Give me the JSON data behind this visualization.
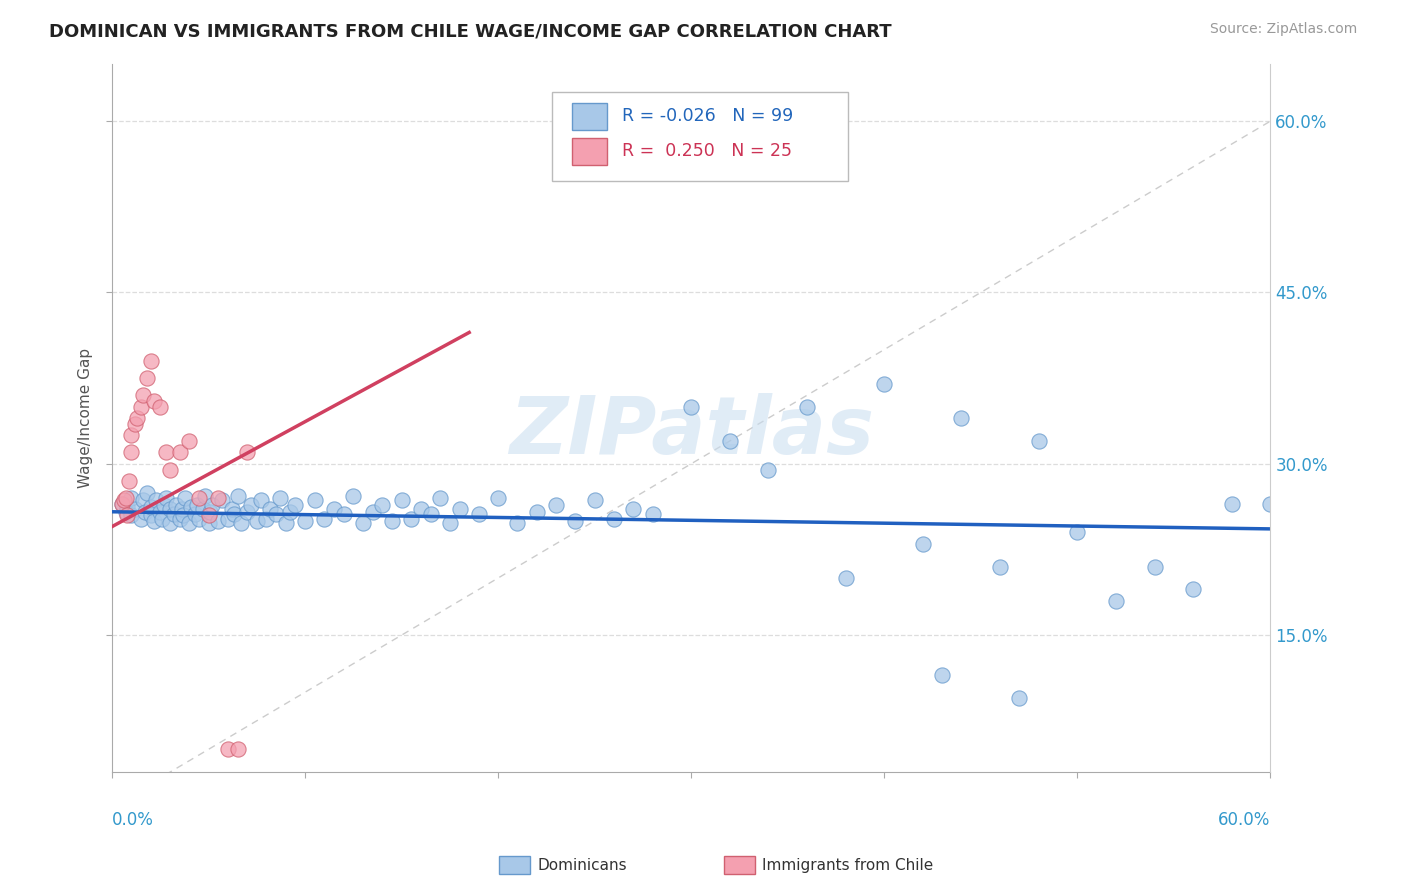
{
  "title": "DOMINICAN VS IMMIGRANTS FROM CHILE WAGE/INCOME GAP CORRELATION CHART",
  "source": "Source: ZipAtlas.com",
  "ylabel": "Wage/Income Gap",
  "ytick_vals": [
    0.15,
    0.3,
    0.45,
    0.6
  ],
  "ytick_labels": [
    "15.0%",
    "30.0%",
    "45.0%",
    "60.0%"
  ],
  "xlim": [
    0.0,
    0.6
  ],
  "ylim": [
    0.03,
    0.65
  ],
  "color_dominican": "#a8c8e8",
  "color_chile": "#f4a0b0",
  "color_trend_dominican": "#2060c0",
  "color_trend_chile": "#d04060",
  "color_diag": "#cccccc",
  "dom_trend_x": [
    0.0,
    0.6
  ],
  "dom_trend_y": [
    0.258,
    0.243
  ],
  "chile_trend_x": [
    0.0,
    0.185
  ],
  "chile_trend_y": [
    0.245,
    0.415
  ],
  "dominican_x": [
    0.005,
    0.007,
    0.008,
    0.01,
    0.01,
    0.012,
    0.015,
    0.016,
    0.017,
    0.018,
    0.02,
    0.02,
    0.022,
    0.023,
    0.025,
    0.026,
    0.027,
    0.028,
    0.03,
    0.03,
    0.032,
    0.033,
    0.035,
    0.036,
    0.037,
    0.038,
    0.04,
    0.041,
    0.043,
    0.044,
    0.045,
    0.047,
    0.048,
    0.05,
    0.051,
    0.052,
    0.055,
    0.057,
    0.06,
    0.062,
    0.063,
    0.065,
    0.067,
    0.07,
    0.072,
    0.075,
    0.077,
    0.08,
    0.082,
    0.085,
    0.087,
    0.09,
    0.092,
    0.095,
    0.1,
    0.105,
    0.11,
    0.115,
    0.12,
    0.125,
    0.13,
    0.135,
    0.14,
    0.145,
    0.15,
    0.155,
    0.16,
    0.165,
    0.17,
    0.175,
    0.18,
    0.19,
    0.2,
    0.21,
    0.22,
    0.23,
    0.24,
    0.25,
    0.26,
    0.27,
    0.28,
    0.3,
    0.32,
    0.34,
    0.36,
    0.38,
    0.4,
    0.42,
    0.44,
    0.46,
    0.48,
    0.5,
    0.52,
    0.54,
    0.56,
    0.58,
    0.6,
    0.43,
    0.47
  ],
  "dominican_y": [
    0.265,
    0.258,
    0.262,
    0.27,
    0.255,
    0.26,
    0.252,
    0.268,
    0.258,
    0.274,
    0.255,
    0.262,
    0.25,
    0.268,
    0.258,
    0.252,
    0.264,
    0.27,
    0.248,
    0.26,
    0.256,
    0.264,
    0.252,
    0.26,
    0.255,
    0.27,
    0.248,
    0.262,
    0.256,
    0.264,
    0.252,
    0.26,
    0.272,
    0.248,
    0.258,
    0.264,
    0.25,
    0.268,
    0.252,
    0.26,
    0.256,
    0.272,
    0.248,
    0.258,
    0.264,
    0.25,
    0.268,
    0.252,
    0.26,
    0.256,
    0.27,
    0.248,
    0.258,
    0.264,
    0.25,
    0.268,
    0.252,
    0.26,
    0.256,
    0.272,
    0.248,
    0.258,
    0.264,
    0.25,
    0.268,
    0.252,
    0.26,
    0.256,
    0.27,
    0.248,
    0.26,
    0.256,
    0.27,
    0.248,
    0.258,
    0.264,
    0.25,
    0.268,
    0.252,
    0.26,
    0.256,
    0.35,
    0.32,
    0.295,
    0.35,
    0.2,
    0.37,
    0.23,
    0.34,
    0.21,
    0.32,
    0.24,
    0.18,
    0.21,
    0.19,
    0.265,
    0.265,
    0.115,
    0.095
  ],
  "chile_x": [
    0.005,
    0.006,
    0.007,
    0.008,
    0.009,
    0.01,
    0.01,
    0.012,
    0.013,
    0.015,
    0.016,
    0.018,
    0.02,
    0.022,
    0.025,
    0.028,
    0.03,
    0.035,
    0.04,
    0.045,
    0.05,
    0.055,
    0.06,
    0.065,
    0.07
  ],
  "chile_y": [
    0.265,
    0.268,
    0.27,
    0.255,
    0.285,
    0.31,
    0.325,
    0.335,
    0.34,
    0.35,
    0.36,
    0.375,
    0.39,
    0.355,
    0.35,
    0.31,
    0.295,
    0.31,
    0.32,
    0.27,
    0.255,
    0.27,
    0.05,
    0.05,
    0.31
  ]
}
